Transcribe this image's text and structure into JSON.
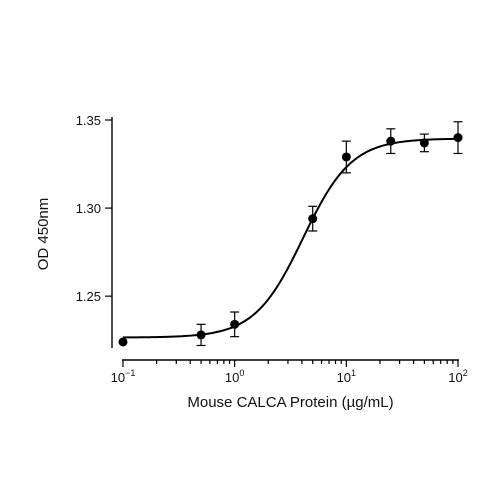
{
  "chart_data": {
    "type": "scatter",
    "xlabel": "Mouse CALCA Protein (µg/mL)",
    "ylabel": "OD 450nm",
    "x_scale": "log",
    "xlim": [
      0.1,
      100
    ],
    "ylim": [
      1.22,
      1.35
    ],
    "x_ticks": [
      {
        "value": 0.1,
        "base": "10",
        "exp": "−1"
      },
      {
        "value": 1,
        "base": "10",
        "exp": "0"
      },
      {
        "value": 10,
        "base": "10",
        "exp": "1"
      },
      {
        "value": 100,
        "base": "10",
        "exp": "2"
      }
    ],
    "y_ticks": [
      {
        "value": 1.25,
        "label": "1.25"
      },
      {
        "value": 1.3,
        "label": "1.30"
      },
      {
        "value": 1.35,
        "label": "1.35"
      }
    ],
    "grid": false,
    "series": [
      {
        "points": [
          {
            "x": 0.1,
            "y": 1.224,
            "err": 0.0
          },
          {
            "x": 0.5,
            "y": 1.228,
            "err": 0.006
          },
          {
            "x": 1,
            "y": 1.234,
            "err": 0.007
          },
          {
            "x": 5,
            "y": 1.294,
            "err": 0.007
          },
          {
            "x": 10,
            "y": 1.329,
            "err": 0.009
          },
          {
            "x": 25,
            "y": 1.338,
            "err": 0.007
          },
          {
            "x": 50,
            "y": 1.337,
            "err": 0.005
          },
          {
            "x": 100,
            "y": 1.34,
            "err": 0.009
          }
        ],
        "fit": {
          "model": "4PL",
          "bottom": 1.2265,
          "top": 1.3395,
          "ec50": 4.1,
          "hill": 2.0
        }
      }
    ]
  }
}
